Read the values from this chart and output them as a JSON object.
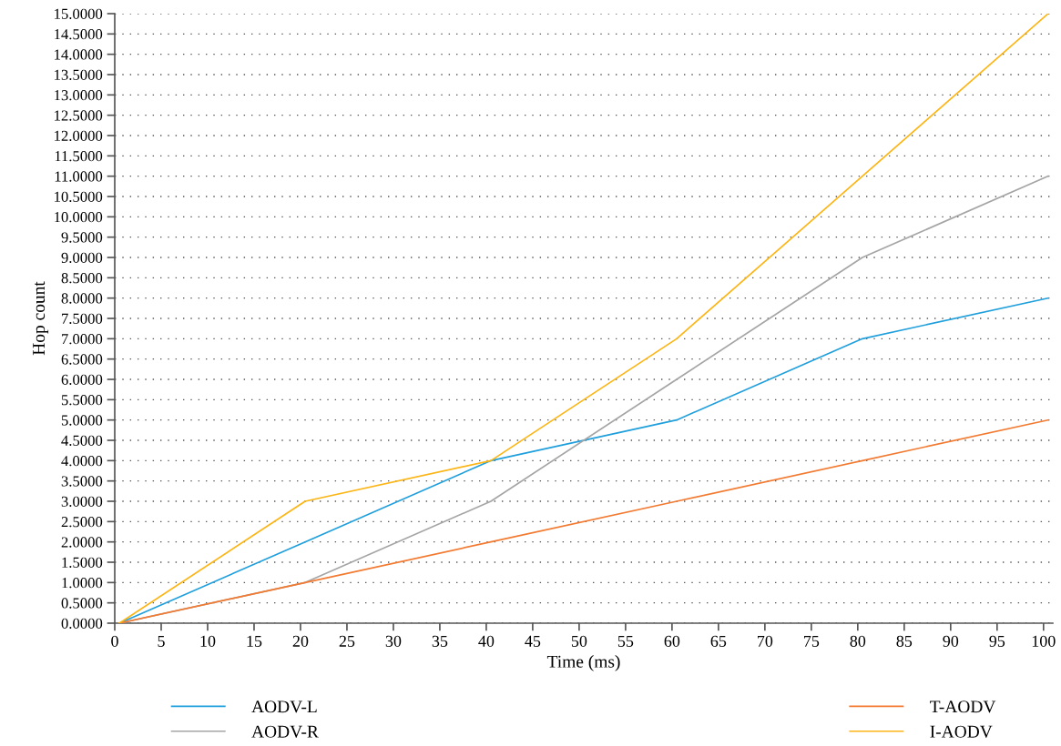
{
  "chart_data": {
    "type": "line",
    "xlabel": "Time (ms)",
    "ylabel": "Hop count",
    "x": [
      0.5,
      20.5,
      40.5,
      60.5,
      80.5,
      100.5
    ],
    "series": [
      {
        "name": "AODV-L",
        "color": "#1f9fdc",
        "values": [
          0,
          2,
          4,
          5,
          7,
          8
        ]
      },
      {
        "name": "AODV-R",
        "color": "#a5a5a5",
        "values": [
          0,
          1,
          3,
          6,
          9,
          11
        ]
      },
      {
        "name": "T-AODV",
        "color": "#f37a31",
        "values": [
          0,
          1,
          2,
          3,
          4,
          5
        ]
      },
      {
        "name": "I-AODV",
        "color": "#fcb514",
        "values": [
          0,
          3,
          4,
          7,
          11,
          15
        ]
      }
    ],
    "xlim": [
      0,
      101
    ],
    "xticks": [
      0,
      5,
      10,
      15,
      20,
      25,
      30,
      35,
      40,
      45,
      50,
      55,
      60,
      65,
      70,
      75,
      80,
      85,
      90,
      95,
      100
    ],
    "ylim": [
      0,
      15
    ],
    "yticks": [
      {
        "value": 0,
        "label": "0.0000"
      },
      {
        "value": 0.5,
        "label": "0.5000"
      },
      {
        "value": 1,
        "label": "1.0000"
      },
      {
        "value": 1.5,
        "label": "1.5000"
      },
      {
        "value": 2,
        "label": "2.0000"
      },
      {
        "value": 2.5,
        "label": "2.5000"
      },
      {
        "value": 3,
        "label": "3.0000"
      },
      {
        "value": 3.5,
        "label": "3.5000"
      },
      {
        "value": 4,
        "label": "4.0000"
      },
      {
        "value": 4.5,
        "label": "4.5000"
      },
      {
        "value": 5,
        "label": "5.0000"
      },
      {
        "value": 5.5,
        "label": "5.5000"
      },
      {
        "value": 6,
        "label": "6.0000"
      },
      {
        "value": 6.5,
        "label": "6.5000"
      },
      {
        "value": 7,
        "label": "7.0000"
      },
      {
        "value": 7.5,
        "label": "7.5000"
      },
      {
        "value": 8,
        "label": "8.0000"
      },
      {
        "value": 8.5,
        "label": "8.5000"
      },
      {
        "value": 9,
        "label": "9.0000"
      },
      {
        "value": 9.5,
        "label": "9.5000"
      },
      {
        "value": 10,
        "label": "10.0000"
      },
      {
        "value": 10.5,
        "label": "10.5000"
      },
      {
        "value": 11,
        "label": "11.0000"
      },
      {
        "value": 11.5,
        "label": "11.5000"
      },
      {
        "value": 12,
        "label": "12.0000"
      },
      {
        "value": 12.5,
        "label": "12.5000"
      },
      {
        "value": 13,
        "label": "13.0000"
      },
      {
        "value": 13.5,
        "label": "13.5000"
      },
      {
        "value": 14,
        "label": "14.0000"
      },
      {
        "value": 14.5,
        "label": "14.5000"
      },
      {
        "value": 15,
        "label": "15.0000"
      }
    ],
    "grid": "y",
    "legend": "bottom",
    "marker": "none",
    "line_style": "solid"
  }
}
